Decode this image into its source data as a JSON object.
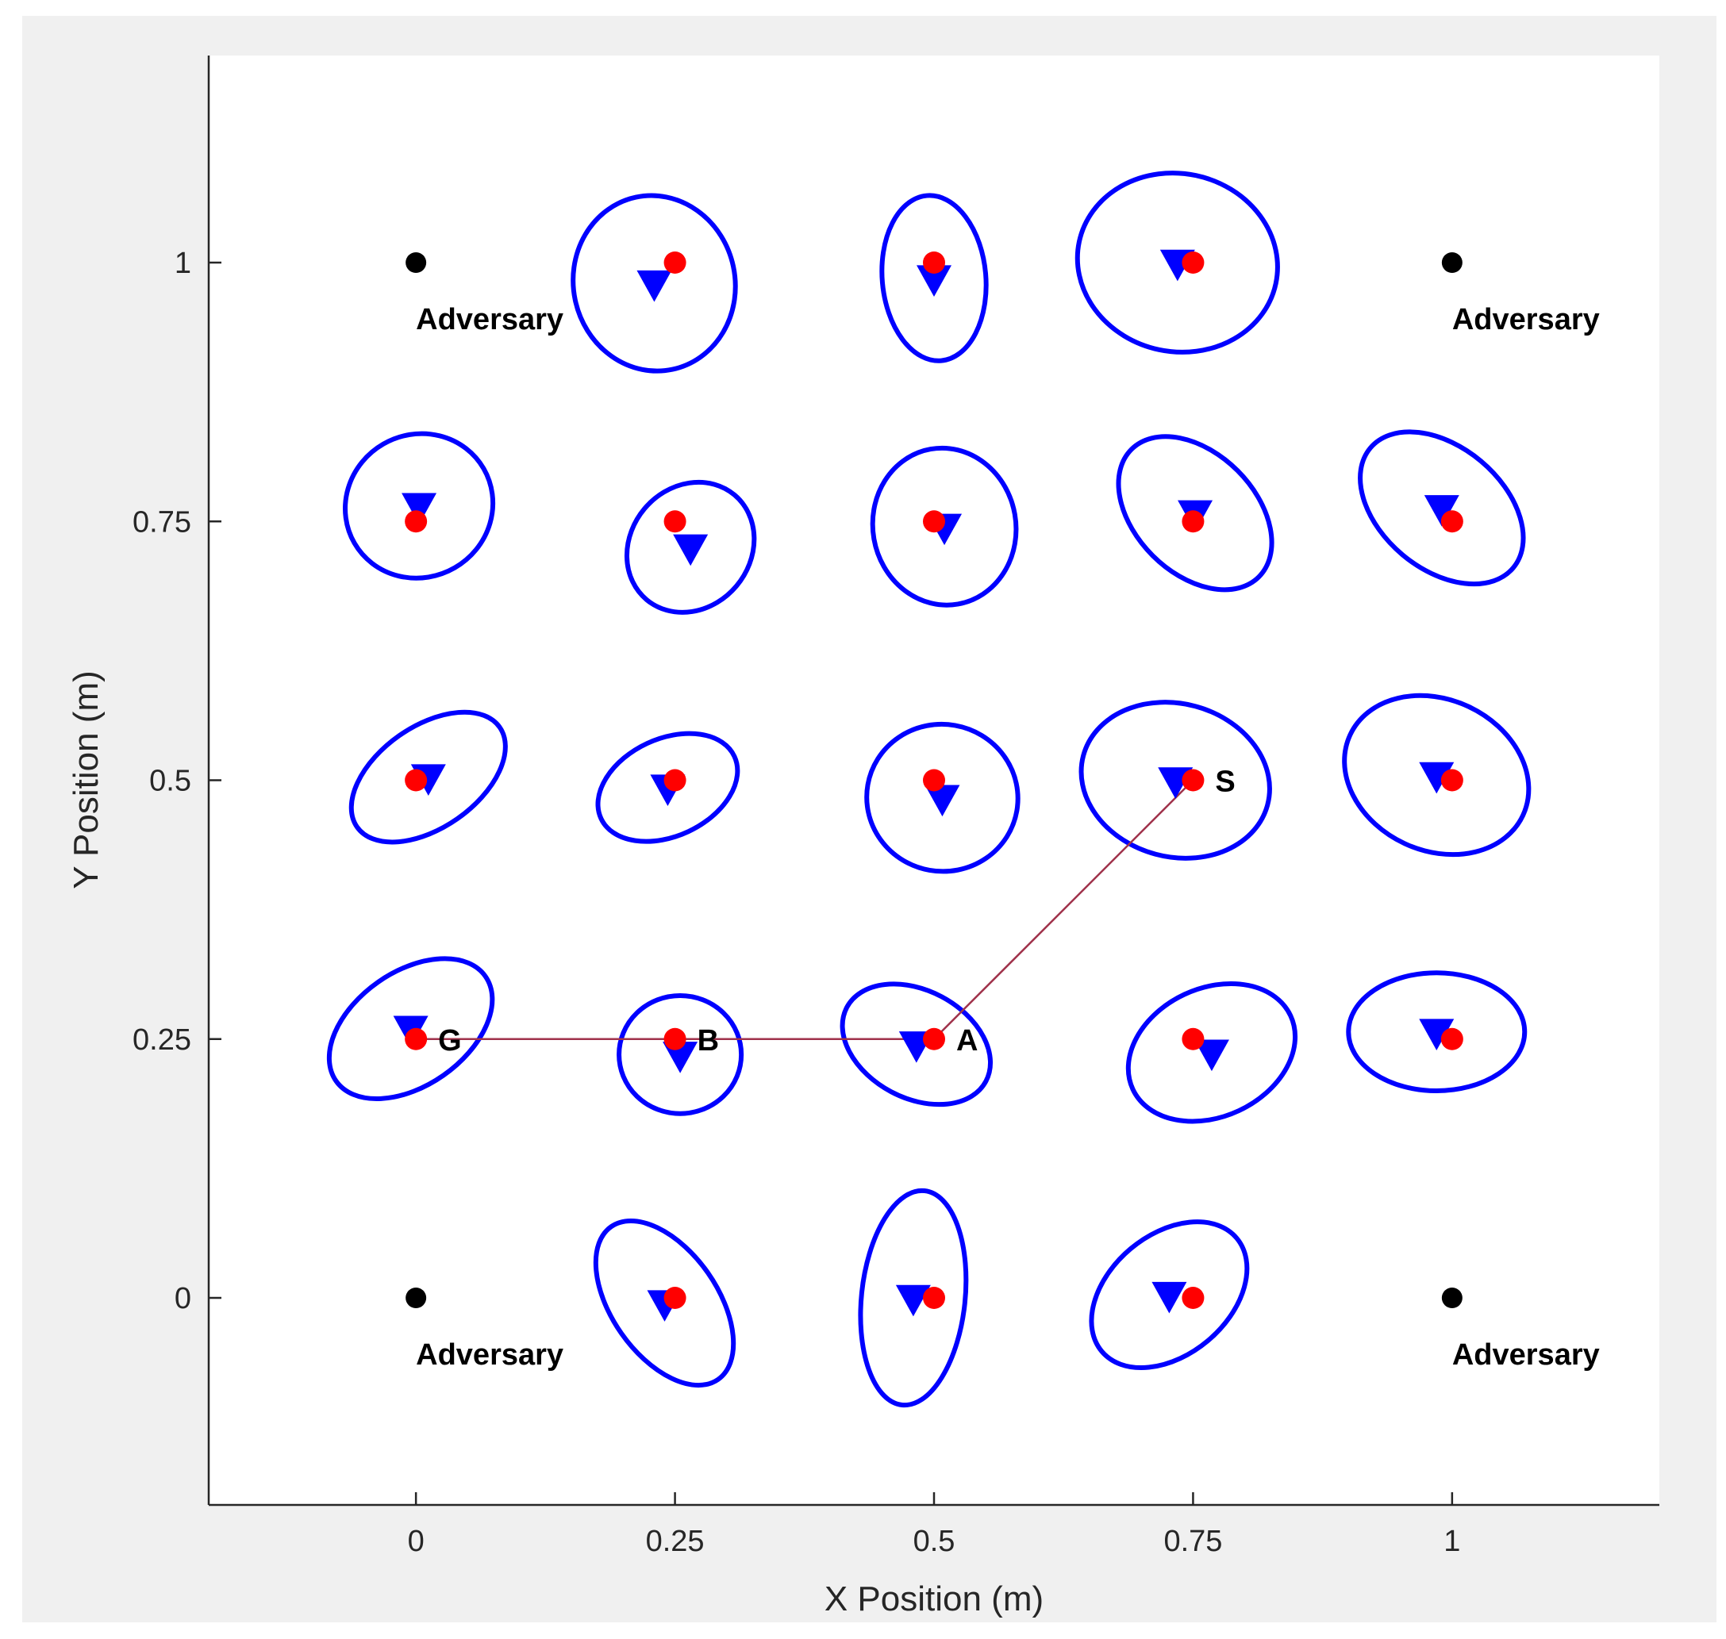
{
  "chart_data": {
    "type": "scatter",
    "title": "",
    "xlabel": "X Position (m)",
    "ylabel": "Y Position (m)",
    "xlim": [
      -0.2,
      1.2
    ],
    "ylim": [
      -0.2,
      1.2
    ],
    "xticks": [
      0,
      0.25,
      0.5,
      0.75,
      1
    ],
    "xtick_labels": [
      "0",
      "0.25",
      "0.5",
      "0.75",
      "1"
    ],
    "yticks": [
      0,
      0.25,
      0.5,
      0.75,
      1
    ],
    "ytick_labels": [
      "0",
      "0.25",
      "0.5",
      "0.75",
      "1"
    ],
    "grid": false,
    "colors": {
      "true_position": "#ff0000",
      "estimate": "#0000ff",
      "ellipse": "#0000ff",
      "adversary": "#000000",
      "path": "#a0324b"
    },
    "adversaries": [
      {
        "x": 0,
        "y": 1,
        "label": "Adversary"
      },
      {
        "x": 1,
        "y": 1,
        "label": "Adversary"
      },
      {
        "x": 0,
        "y": 0,
        "label": "Adversary"
      },
      {
        "x": 1,
        "y": 0,
        "label": "Adversary"
      }
    ],
    "nodes": [
      {
        "x": 0.25,
        "y": 1.0,
        "ex": 0.23,
        "ey": 0.98,
        "rx": 0.078,
        "ry": 0.085,
        "rot": -12
      },
      {
        "x": 0.5,
        "y": 1.0,
        "ex": 0.5,
        "ey": 0.985,
        "rx": 0.05,
        "ry": 0.08,
        "rot": -5
      },
      {
        "x": 0.75,
        "y": 1.0,
        "ex": 0.735,
        "ey": 1.0,
        "rx": 0.097,
        "ry": 0.086,
        "rot": 12
      },
      {
        "x": 0,
        "y": 0.75,
        "ex": 0.003,
        "ey": 0.765,
        "rx": 0.072,
        "ry": 0.069,
        "rot": -30
      },
      {
        "x": 0.25,
        "y": 0.75,
        "ex": 0.265,
        "ey": 0.725,
        "rx": 0.066,
        "ry": 0.058,
        "rot": -50
      },
      {
        "x": 0.5,
        "y": 0.75,
        "ex": 0.51,
        "ey": 0.745,
        "rx": 0.069,
        "ry": 0.076,
        "rot": -10
      },
      {
        "x": 0.75,
        "y": 0.75,
        "ex": 0.752,
        "ey": 0.758,
        "rx": 0.087,
        "ry": 0.058,
        "rot": 45
      },
      {
        "x": 1.0,
        "y": 0.75,
        "ex": 0.99,
        "ey": 0.763,
        "rx": 0.09,
        "ry": 0.059,
        "rot": 40
      },
      {
        "x": 0,
        "y": 0.5,
        "ex": 0.012,
        "ey": 0.503,
        "rx": 0.084,
        "ry": 0.049,
        "rot": -35
      },
      {
        "x": 0.25,
        "y": 0.5,
        "ex": 0.243,
        "ey": 0.493,
        "rx": 0.071,
        "ry": 0.047,
        "rot": -25
      },
      {
        "x": 0.5,
        "y": 0.5,
        "ex": 0.508,
        "ey": 0.483,
        "rx": 0.073,
        "ry": 0.071,
        "rot": 10
      },
      {
        "x": 0.75,
        "y": 0.5,
        "ex": 0.733,
        "ey": 0.5,
        "rx": 0.092,
        "ry": 0.074,
        "rot": 15
      },
      {
        "x": 1.0,
        "y": 0.5,
        "ex": 0.985,
        "ey": 0.505,
        "rx": 0.092,
        "ry": 0.073,
        "rot": 25
      },
      {
        "x": 0,
        "y": 0.25,
        "ex": -0.005,
        "ey": 0.26,
        "rx": 0.088,
        "ry": 0.055,
        "rot": -35
      },
      {
        "x": 0.25,
        "y": 0.25,
        "ex": 0.255,
        "ey": 0.235,
        "rx": 0.059,
        "ry": 0.057,
        "rot": 0
      },
      {
        "x": 0.5,
        "y": 0.25,
        "ex": 0.483,
        "ey": 0.245,
        "rx": 0.076,
        "ry": 0.052,
        "rot": 28
      },
      {
        "x": 0.75,
        "y": 0.25,
        "ex": 0.768,
        "ey": 0.237,
        "rx": 0.084,
        "ry": 0.062,
        "rot": -25
      },
      {
        "x": 1.0,
        "y": 0.25,
        "ex": 0.985,
        "ey": 0.257,
        "rx": 0.085,
        "ry": 0.057,
        "rot": 0
      },
      {
        "x": 0.25,
        "y": 0,
        "ex": 0.24,
        "ey": -0.005,
        "rx": 0.09,
        "ry": 0.051,
        "rot": 55
      },
      {
        "x": 0.5,
        "y": 0,
        "ex": 0.48,
        "ey": 0.0,
        "rx": 0.05,
        "ry": 0.104,
        "rot": 6
      },
      {
        "x": 0.75,
        "y": 0,
        "ex": 0.727,
        "ey": 0.003,
        "rx": 0.085,
        "ry": 0.058,
        "rot": -40
      }
    ],
    "path": [
      {
        "x": 0.75,
        "y": 0.5
      },
      {
        "x": 0.5,
        "y": 0.25
      },
      {
        "x": 0.25,
        "y": 0.25
      },
      {
        "x": 0,
        "y": 0.25
      }
    ],
    "annotations": [
      {
        "text": "S",
        "x": 0.75,
        "y": 0.5
      },
      {
        "text": "A",
        "x": 0.5,
        "y": 0.25
      },
      {
        "text": "B",
        "x": 0.25,
        "y": 0.25
      },
      {
        "text": "G",
        "x": 0,
        "y": 0.25
      }
    ]
  }
}
